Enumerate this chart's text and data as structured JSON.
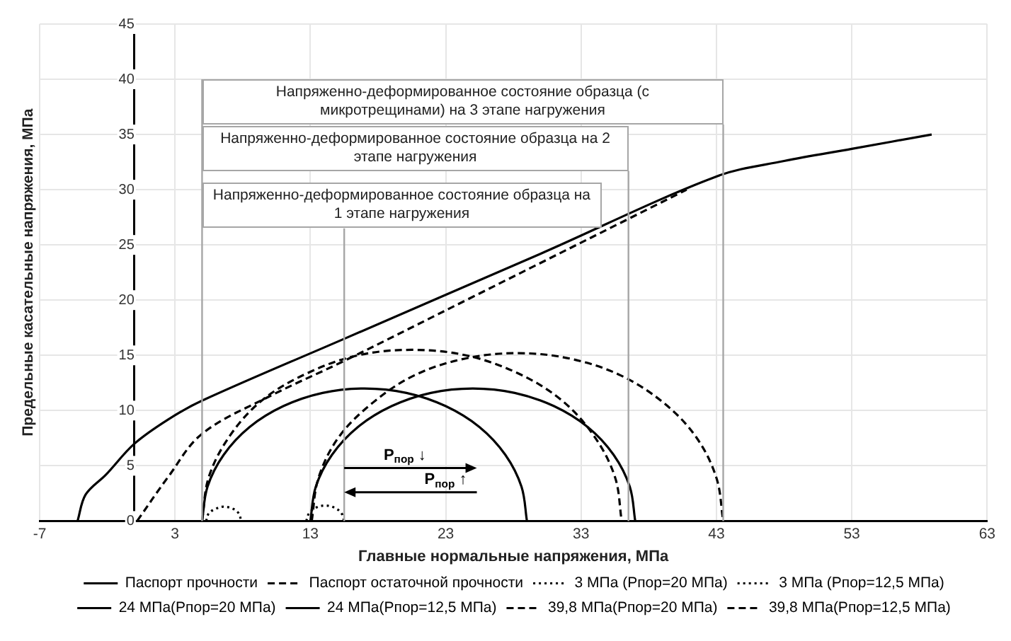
{
  "chart_data": {
    "type": "line",
    "xlabel": "Главные нормальные напряжения, МПа",
    "ylabel": "Предельные касательные напряжения, МПа",
    "xlim": [
      -7,
      63
    ],
    "xticks": [
      -7,
      3,
      13,
      23,
      33,
      43,
      53,
      63
    ],
    "ylim": [
      0,
      45
    ],
    "yticks": [
      0,
      5,
      10,
      15,
      20,
      25,
      30,
      35,
      40,
      45
    ],
    "grid": true,
    "legend": "bottom",
    "marker": "none",
    "series": [
      {
        "name": "Паспорт прочности",
        "color": "#000000",
        "line_style": "solid",
        "x": [
          -4.2,
          -3.6,
          -2.1,
          0,
          2.5,
          5,
          15.5,
          30,
          43,
          48,
          53,
          58.9
        ],
        "values": [
          0,
          2.4,
          4.2,
          7,
          9.2,
          10.9,
          16.5,
          24.2,
          31.2,
          32.6,
          33.7,
          35
        ]
      },
      {
        "name": "Паспорт остаточной прочности",
        "color": "#000000",
        "line_style": "dashed",
        "x": [
          0.2,
          2.5,
          5,
          10,
          15.5,
          25,
          40.8
        ],
        "values": [
          0,
          4,
          7.9,
          11.3,
          14.5,
          20.3,
          30
        ]
      },
      {
        "name": "3 МПа (Рпор=20 МПа)",
        "color": "#000000",
        "line_style": "dotted",
        "x": [
          5.3,
          5.5,
          6,
          6.6,
          7.3,
          7.7,
          7.9
        ],
        "values": [
          0,
          0.7,
          1.1,
          1.3,
          1.1,
          0.7,
          0
        ]
      },
      {
        "name": "3 МПа (Рпор=12,5 МПа)",
        "color": "#000000",
        "line_style": "dotted",
        "x": [
          12.7,
          12.9,
          13.4,
          14.1,
          14.8,
          15.3,
          15.5
        ],
        "values": [
          0,
          0.7,
          1.2,
          1.4,
          1.2,
          0.7,
          0
        ]
      },
      {
        "name": "24 МПа(Рпор=20 МПа)",
        "color": "#000000",
        "line_style": "solid",
        "x": [
          5,
          5.4,
          6.6,
          8.5,
          11,
          13.9,
          17,
          20.1,
          23,
          25.5,
          27.4,
          28.6,
          29
        ],
        "values": [
          0,
          3.1,
          6,
          8.5,
          10.4,
          11.6,
          12,
          11.6,
          10.4,
          8.5,
          6,
          3.1,
          0
        ]
      },
      {
        "name": "24 МПа(Рпор=12,5 МПа)",
        "color": "#000000",
        "line_style": "solid",
        "x": [
          13,
          13.4,
          14.6,
          16.5,
          19,
          21.9,
          25,
          28.1,
          31,
          33.5,
          35.4,
          36.6,
          37
        ],
        "values": [
          0,
          3.1,
          6,
          8.5,
          10.4,
          11.6,
          12,
          11.6,
          10.4,
          8.5,
          6,
          3.1,
          0
        ]
      },
      {
        "name": "39,8 МПа(Рпор=20 МПа)",
        "color": "#000000",
        "line_style": "dashed",
        "x": [
          5,
          5.5,
          7.1,
          9.5,
          12.8,
          16.5,
          20.5,
          24.5,
          28.3,
          31.5,
          33.9,
          35.5,
          36
        ],
        "values": [
          0,
          4,
          7.8,
          11,
          13.4,
          15,
          15.5,
          15,
          13.4,
          11,
          7.8,
          4,
          0
        ]
      },
      {
        "name": "39,8 МПа(Рпор=12,5 МПа)",
        "color": "#000000",
        "line_style": "dashed",
        "x": [
          13.1,
          13.6,
          15.1,
          17.6,
          20.7,
          24.4,
          28.3,
          32.2,
          35.9,
          39.1,
          41.5,
          43,
          43.5
        ],
        "values": [
          0,
          3.9,
          7.6,
          10.7,
          13.2,
          14.7,
          15.2,
          14.7,
          13.2,
          10.7,
          7.6,
          3.9,
          0
        ]
      }
    ],
    "ref_lines": [
      {
        "axis": "x",
        "value": 5,
        "color": "#a6a6a6"
      },
      {
        "axis": "x",
        "value": 15.5,
        "color": "#a6a6a6"
      },
      {
        "axis": "x",
        "value": 36.5,
        "color": "#a6a6a6"
      },
      {
        "axis": "x",
        "value": 43.5,
        "color": "#a6a6a6"
      }
    ],
    "annotations": [
      "Напряженно-деформированное состояние образца на 1 этапе нагружения",
      "Напряженно-деформированное состояние образца на 2 этапе нагружения",
      "Напряженно-деформированное состояние образца (с микротрещинами) на 3 этапе нагружения",
      "P$_{пор}$ ↓",
      {
        "text": "P$_{пор}$ ↑",
        "x": 15.5,
        "y": 2.6
      }
    ]
  }
}
